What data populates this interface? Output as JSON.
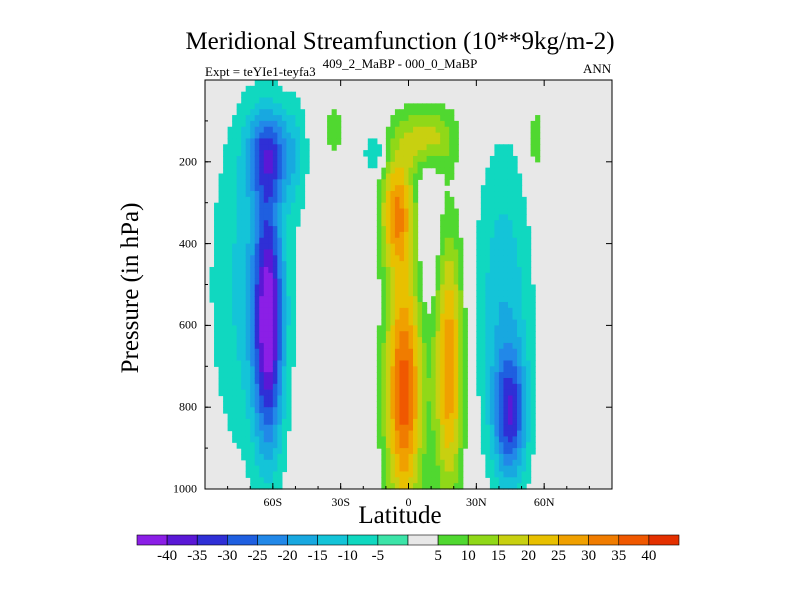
{
  "chart_data": {
    "type": "heatmap",
    "title": "Meridional Streamfunction (10**9kg/m-2)",
    "subtitle": "409_2_MaBP - 000_0_MaBP",
    "left_label": "Expt = teYIe1-teyfa3",
    "right_label": "ANN",
    "xlabel": "Latitude",
    "ylabel": "Pressure (in hPa)",
    "xlim": [
      -90,
      90
    ],
    "ylim": [
      1000,
      0
    ],
    "x_ticks": [
      {
        "value": -60,
        "label": "60S"
      },
      {
        "value": -30,
        "label": "30S"
      },
      {
        "value": 0,
        "label": "0"
      },
      {
        "value": 30,
        "label": "30N"
      },
      {
        "value": 60,
        "label": "60N"
      }
    ],
    "y_ticks": [
      {
        "value": 200,
        "label": "200"
      },
      {
        "value": 400,
        "label": "400"
      },
      {
        "value": 600,
        "label": "600"
      },
      {
        "value": 800,
        "label": "800"
      },
      {
        "value": 1000,
        "label": "1000"
      }
    ],
    "colorbar": {
      "levels": [
        -40,
        -35,
        -30,
        -25,
        -20,
        -15,
        -10,
        -5,
        5,
        10,
        15,
        20,
        25,
        30,
        35,
        40
      ],
      "labels": [
        "-40",
        "-35",
        "-30",
        "-25",
        "-20",
        "-15",
        "-10",
        "-5",
        "5",
        "10",
        "15",
        "20",
        "25",
        "30",
        "35",
        "40"
      ],
      "colors": [
        "#8b1fe6",
        "#5a18d6",
        "#2f2fd6",
        "#1f5fe0",
        "#2288e8",
        "#18a8e0",
        "#14c4d8",
        "#10d8c0",
        "#3ce4a8",
        "#e8e8e8",
        "#50d830",
        "#90d818",
        "#c8d010",
        "#e8c000",
        "#f0a000",
        "#f07c00",
        "#f05800",
        "#e43000"
      ]
    },
    "missing_color": "#e8e8e8",
    "features": [
      {
        "name": "southern-negative-cell",
        "lat": -62,
        "pressure": 600,
        "lat_halfwidth": 7,
        "p_halfwidth": 380,
        "value": -38
      },
      {
        "name": "southern-negative-cell-upper",
        "lat": -62,
        "pressure": 180,
        "lat_halfwidth": 10,
        "p_halfwidth": 140,
        "value": -25
      },
      {
        "name": "southern-broad-weak",
        "lat": -70,
        "pressure": 500,
        "lat_halfwidth": 20,
        "p_halfwidth": 560,
        "value": -12
      },
      {
        "name": "southern-mid-negative",
        "lat": -50,
        "pressure": 180,
        "lat_halfwidth": 6,
        "p_halfwidth": 180,
        "value": -8
      },
      {
        "name": "upper-positive-patch",
        "lat": -33,
        "pressure": 120,
        "lat_halfwidth": 5,
        "p_halfwidth": 90,
        "value": 8
      },
      {
        "name": "upper-negative-patch",
        "lat": -15,
        "pressure": 180,
        "lat_halfwidth": 5,
        "p_halfwidth": 70,
        "value": -12
      },
      {
        "name": "tropical-positive-cell",
        "lat": -2,
        "pressure": 760,
        "lat_halfwidth": 9,
        "p_halfwidth": 380,
        "value": 38
      },
      {
        "name": "tropical-positive-upper",
        "lat": -5,
        "pressure": 320,
        "lat_halfwidth": 8,
        "p_halfwidth": 180,
        "value": 28
      },
      {
        "name": "tropical-positive-north",
        "lat": 18,
        "pressure": 700,
        "lat_halfwidth": 7,
        "p_halfwidth": 400,
        "value": 30
      },
      {
        "name": "equatorial-upper-band",
        "lat": 8,
        "pressure": 140,
        "lat_halfwidth": 14,
        "p_halfwidth": 100,
        "value": 18
      },
      {
        "name": "equatorial-negative-core",
        "lat": 9,
        "pressure": 380,
        "lat_halfwidth": 5,
        "p_halfwidth": 250,
        "value": -8
      },
      {
        "name": "northern-negative-cell",
        "lat": 45,
        "pressure": 820,
        "lat_halfwidth": 8,
        "p_halfwidth": 200,
        "value": -28
      },
      {
        "name": "northern-negative-broad",
        "lat": 42,
        "pressure": 550,
        "lat_halfwidth": 14,
        "p_halfwidth": 500,
        "value": -14
      },
      {
        "name": "northern-upper-positive",
        "lat": 56,
        "pressure": 150,
        "lat_halfwidth": 5,
        "p_halfwidth": 150,
        "value": 8
      }
    ]
  }
}
